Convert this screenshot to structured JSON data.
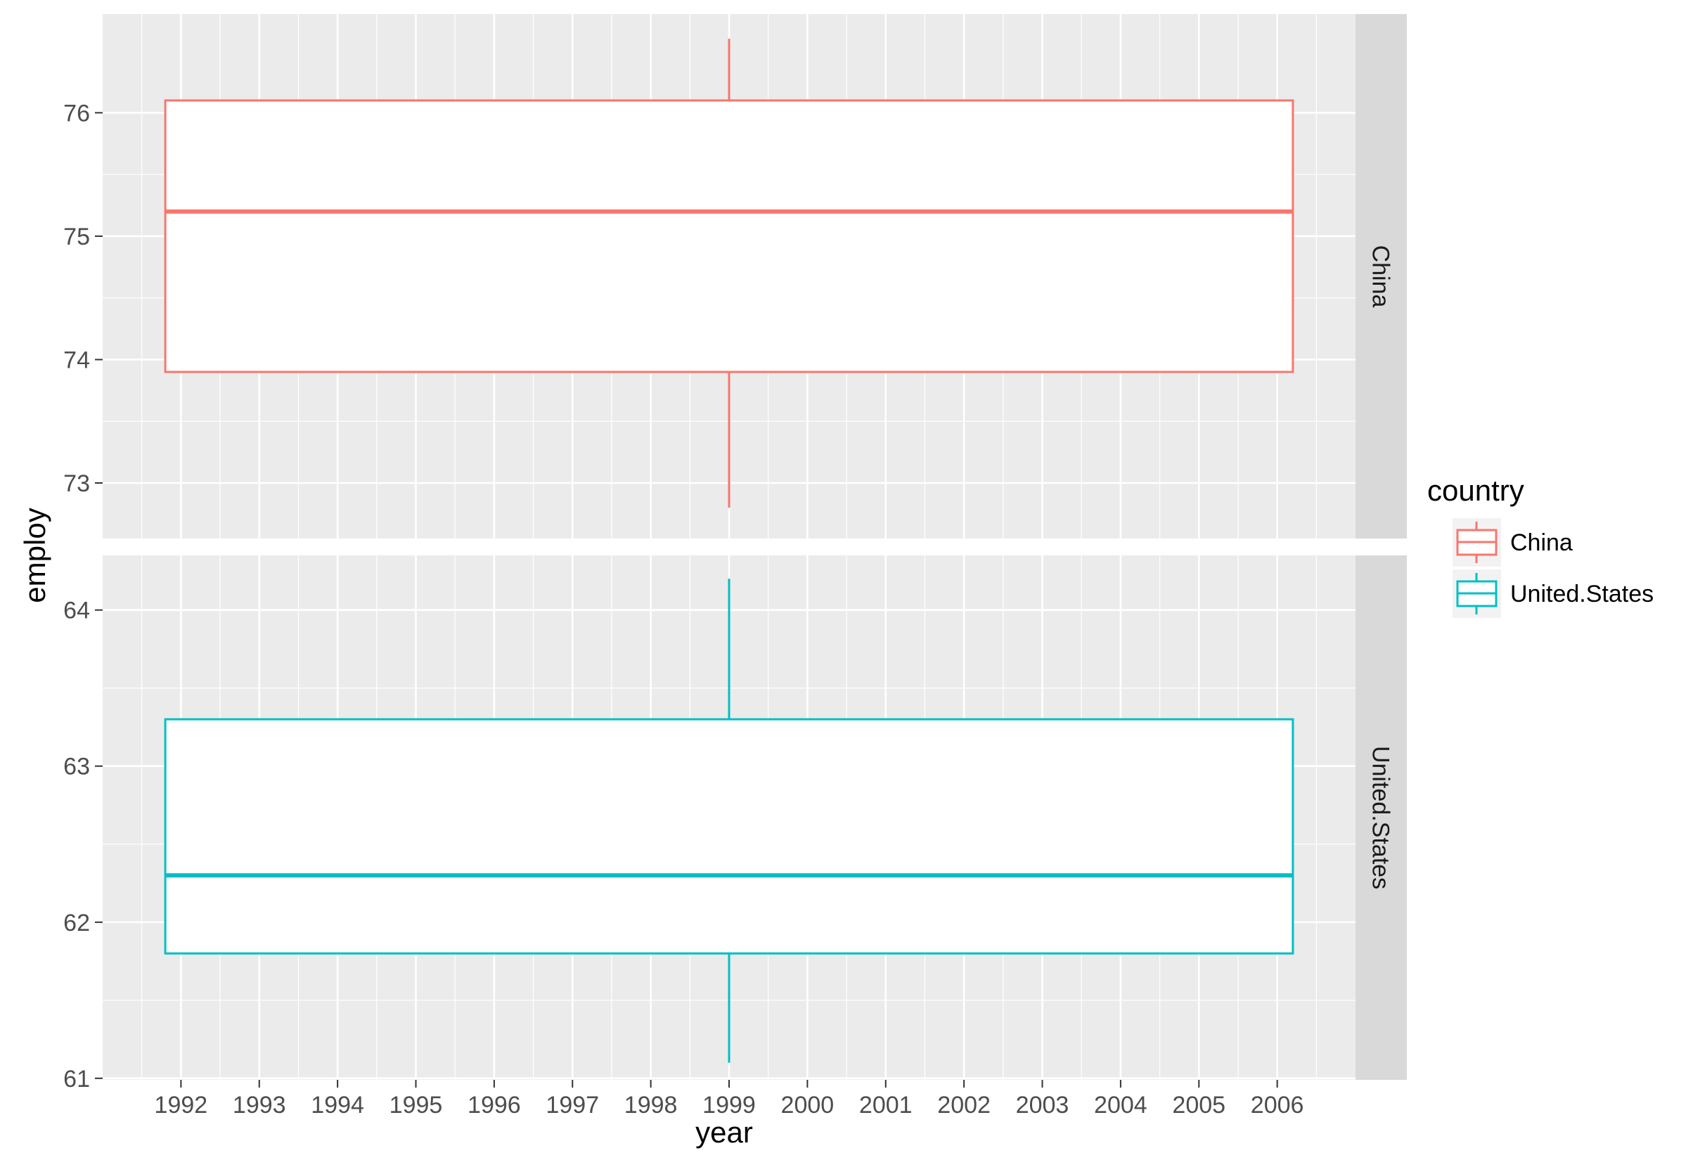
{
  "chart_data": {
    "type": "boxplot",
    "facet_by": "country",
    "x": {
      "label": "year",
      "range": [
        1991.0,
        2007.0
      ],
      "ticks": [
        "1992",
        "1993",
        "1994",
        "1995",
        "1996",
        "1997",
        "1998",
        "1999",
        "2000",
        "2001",
        "2002",
        "2003",
        "2004",
        "2005",
        "2006"
      ]
    },
    "y": {
      "label": "employ"
    },
    "grid": true,
    "legend": {
      "title": "country",
      "position": "right",
      "entries": [
        {
          "name": "China",
          "color": "#F8766D"
        },
        {
          "name": "United.States",
          "color": "#00BFC4"
        }
      ]
    },
    "panels": [
      {
        "strip": "China",
        "color": "#F8766D",
        "ylim": [
          72.55,
          76.8
        ],
        "yticks": [
          "73",
          "74",
          "75",
          "76"
        ],
        "box": {
          "x_from": 1991.8,
          "x_to": 2006.2,
          "whisker_x": 1999,
          "lower_whisker": 72.8,
          "q1": 73.9,
          "median": 75.2,
          "q3": 76.1,
          "upper_whisker": 76.6
        }
      },
      {
        "strip": "United.States",
        "color": "#00BFC4",
        "ylim": [
          60.99,
          64.35
        ],
        "yticks": [
          "61",
          "62",
          "63",
          "64"
        ],
        "box": {
          "x_from": 1991.8,
          "x_to": 2006.2,
          "whisker_x": 1999,
          "lower_whisker": 61.1,
          "q1": 61.8,
          "median": 62.3,
          "q3": 63.3,
          "upper_whisker": 64.2
        }
      }
    ]
  }
}
